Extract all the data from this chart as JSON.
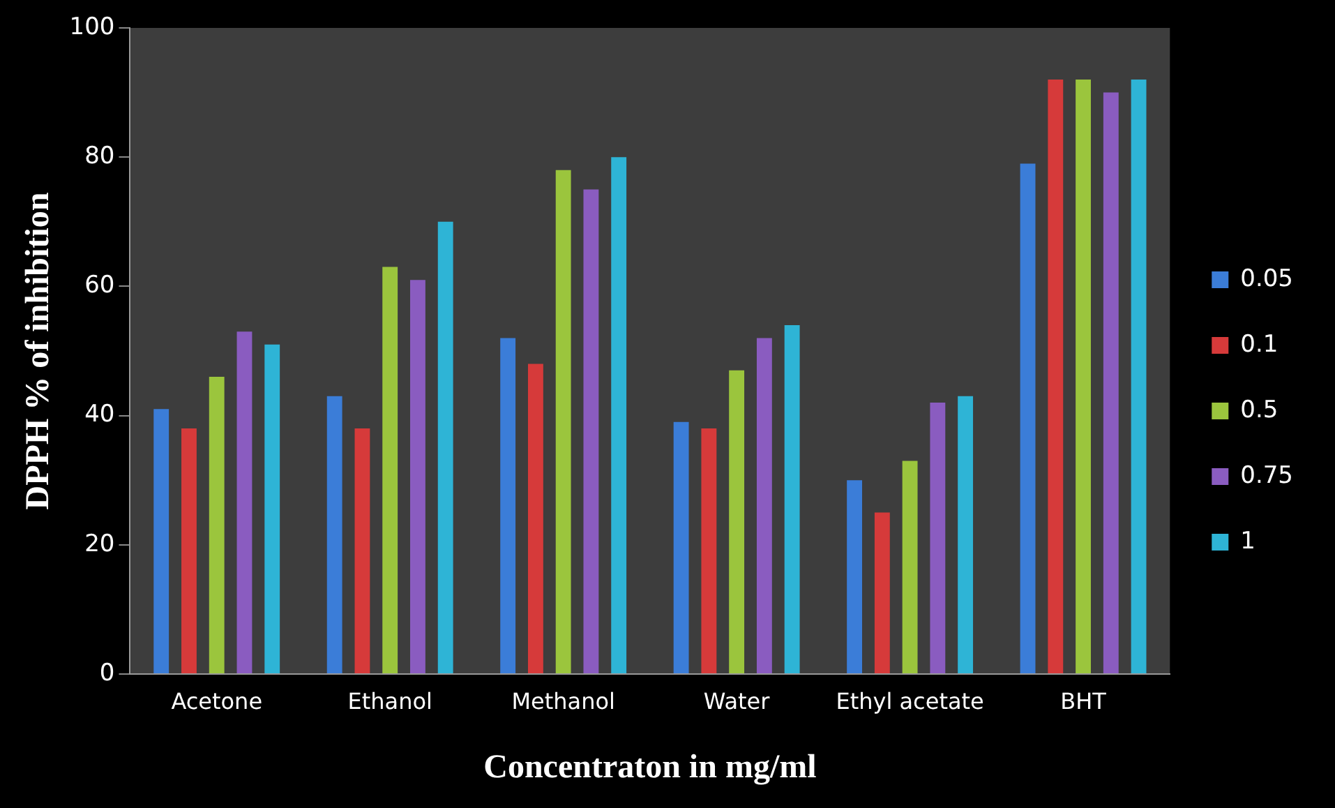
{
  "chart_data": {
    "type": "bar",
    "xlabel": "Concentraton in mg/ml",
    "ylabel": "DPPH % of inhibition",
    "categories": [
      "Acetone",
      "Ethanol",
      "Methanol",
      "Water",
      "Ethyl acetate",
      "BHT"
    ],
    "series": [
      {
        "name": "0.05",
        "color": "#3b7dd8",
        "values": [
          41,
          43,
          52,
          39,
          30,
          79
        ]
      },
      {
        "name": "0.1",
        "color": "#d63a3a",
        "values": [
          38,
          38,
          48,
          38,
          25,
          92
        ]
      },
      {
        "name": "0.5",
        "color": "#9bc53d",
        "values": [
          46,
          63,
          78,
          47,
          33,
          92
        ]
      },
      {
        "name": "0.75",
        "color": "#8a5cc0",
        "values": [
          53,
          61,
          75,
          52,
          42,
          90
        ]
      },
      {
        "name": "1",
        "color": "#2eb4d6",
        "values": [
          51,
          70,
          80,
          54,
          43,
          92
        ]
      }
    ],
    "ylim": [
      0,
      100
    ],
    "yticks": [
      0,
      20,
      40,
      60,
      80,
      100
    ],
    "grid": false,
    "legend": "right"
  }
}
